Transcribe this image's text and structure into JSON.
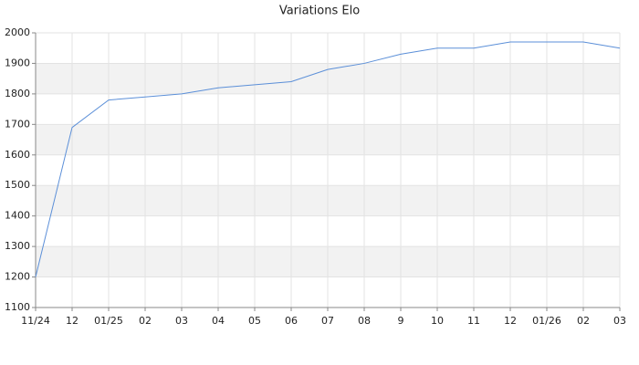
{
  "chart_data": {
    "type": "line",
    "title": "Variations Elo",
    "categories": [
      "11/24",
      "12",
      "01/25",
      "02",
      "03",
      "04",
      "05",
      "06",
      "07",
      "08",
      "9",
      "10",
      "11",
      "12",
      "01/26",
      "02",
      "03"
    ],
    "series": [
      {
        "name": "Elo",
        "color": "#5b8fd8",
        "values": [
          1200,
          1690,
          1780,
          1790,
          1800,
          1820,
          1830,
          1840,
          1880,
          1900,
          1930,
          1950,
          1950,
          1970,
          1970,
          1970,
          1950
        ]
      }
    ],
    "ylim": [
      1100,
      2000
    ],
    "yticks": [
      1100,
      1200,
      1300,
      1400,
      1500,
      1600,
      1700,
      1800,
      1900,
      2000
    ],
    "grid": true
  }
}
